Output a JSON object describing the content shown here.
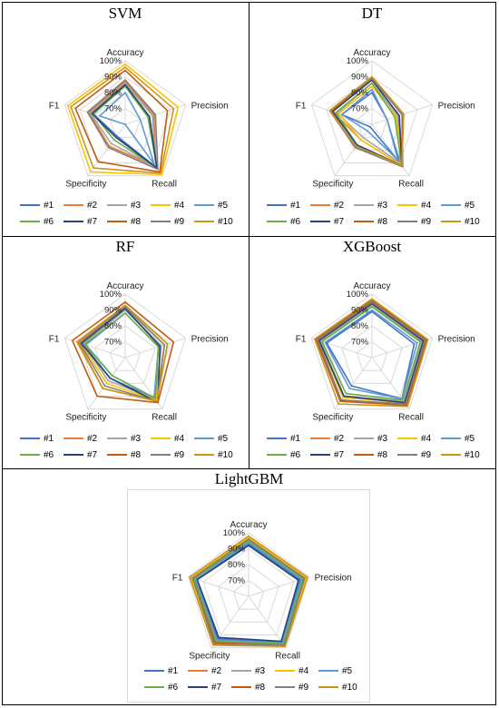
{
  "axes": [
    "Accuracy",
    "Precision",
    "Recall",
    "Specificity",
    "F1"
  ],
  "ticks": [
    "70%",
    "80%",
    "90%",
    "100%"
  ],
  "legend": [
    "#1",
    "#2",
    "#3",
    "#4",
    "#5",
    "#6",
    "#7",
    "#8",
    "#9",
    "#10"
  ],
  "colors": [
    "#4472c4",
    "#ed7d31",
    "#a5a5a5",
    "#ffc000",
    "#5b9bd5",
    "#70ad47",
    "#264478",
    "#c55a11",
    "#7f7f7f",
    "#c9961a"
  ],
  "chart_data": [
    {
      "type": "radar",
      "title": "SVM",
      "axes": [
        "Accuracy",
        "Precision",
        "Recall",
        "Specificity",
        "F1"
      ],
      "rmin": 60,
      "rmax": 100,
      "ticks": [
        70,
        80,
        90,
        100
      ],
      "series": [
        {
          "name": "#1",
          "values": [
            85,
            76,
            94,
            69,
            81
          ]
        },
        {
          "name": "#2",
          "values": [
            87,
            79,
            93,
            77,
            84
          ]
        },
        {
          "name": "#3",
          "values": [
            86,
            78,
            93,
            75,
            83
          ]
        },
        {
          "name": "#4",
          "values": [
            98,
            95,
            99,
            97,
            98
          ]
        },
        {
          "name": "#5",
          "values": [
            80,
            70,
            91,
            60,
            77
          ]
        },
        {
          "name": "#6",
          "values": [
            84,
            75,
            94,
            72,
            81
          ]
        },
        {
          "name": "#7",
          "values": [
            85,
            76,
            94,
            70,
            82
          ]
        },
        {
          "name": "#8",
          "values": [
            94,
            88,
            97,
            89,
            93
          ]
        },
        {
          "name": "#9",
          "values": [
            88,
            80,
            95,
            78,
            85
          ]
        },
        {
          "name": "#10",
          "values": [
            96,
            92,
            98,
            94,
            96
          ]
        }
      ]
    },
    {
      "type": "radar",
      "title": "DT",
      "axes": [
        "Accuracy",
        "Precision",
        "Recall",
        "Specificity",
        "F1"
      ],
      "rmin": 60,
      "rmax": 100,
      "ticks": [
        70,
        80,
        90,
        100
      ],
      "series": [
        {
          "name": "#1",
          "values": [
            80,
            70,
            90,
            62,
            80
          ]
        },
        {
          "name": "#2",
          "values": [
            88,
            78,
            92,
            72,
            86
          ]
        },
        {
          "name": "#3",
          "values": [
            86,
            77,
            90,
            70,
            83
          ]
        },
        {
          "name": "#4",
          "values": [
            84,
            76,
            92,
            72,
            82
          ]
        },
        {
          "name": "#5",
          "values": [
            82,
            70,
            88,
            65,
            80
          ]
        },
        {
          "name": "#6",
          "values": [
            86,
            75,
            92,
            76,
            84
          ]
        },
        {
          "name": "#7",
          "values": [
            88,
            78,
            92,
            76,
            86
          ]
        },
        {
          "name": "#8",
          "values": [
            89,
            80,
            92,
            78,
            87
          ]
        },
        {
          "name": "#9",
          "values": [
            89,
            80,
            93,
            78,
            88
          ]
        },
        {
          "name": "#10",
          "values": [
            90,
            81,
            92,
            77,
            88
          ]
        }
      ]
    },
    {
      "type": "radar",
      "title": "RF",
      "axes": [
        "Accuracy",
        "Precision",
        "Recall",
        "Specificity",
        "F1"
      ],
      "rmin": 60,
      "rmax": 100,
      "ticks": [
        70,
        80,
        90,
        100
      ],
      "series": [
        {
          "name": "#1",
          "values": [
            90,
            84,
            92,
            76,
            88
          ]
        },
        {
          "name": "#2",
          "values": [
            93,
            88,
            94,
            84,
            91
          ]
        },
        {
          "name": "#3",
          "values": [
            90,
            84,
            92,
            78,
            88
          ]
        },
        {
          "name": "#4",
          "values": [
            91,
            86,
            93,
            80,
            89
          ]
        },
        {
          "name": "#5",
          "values": [
            88,
            82,
            91,
            74,
            86
          ]
        },
        {
          "name": "#6",
          "values": [
            88,
            82,
            92,
            74,
            87
          ]
        },
        {
          "name": "#7",
          "values": [
            91,
            83,
            95,
            76,
            89
          ]
        },
        {
          "name": "#8",
          "values": [
            95,
            92,
            95,
            90,
            95
          ]
        },
        {
          "name": "#9",
          "values": [
            92,
            86,
            94,
            82,
            90
          ]
        },
        {
          "name": "#10",
          "values": [
            93,
            88,
            94,
            84,
            92
          ]
        }
      ]
    },
    {
      "type": "radar",
      "title": "XGBoost",
      "axes": [
        "Accuracy",
        "Precision",
        "Recall",
        "Specificity",
        "F1"
      ],
      "rmin": 60,
      "rmax": 100,
      "ticks": [
        70,
        80,
        90,
        100
      ],
      "series": [
        {
          "name": "#1",
          "values": [
            89,
            88,
            92,
            82,
            90
          ]
        },
        {
          "name": "#2",
          "values": [
            95,
            95,
            96,
            93,
            96
          ]
        },
        {
          "name": "#3",
          "values": [
            93,
            93,
            94,
            90,
            94
          ]
        },
        {
          "name": "#4",
          "values": [
            94,
            94,
            95,
            91,
            95
          ]
        },
        {
          "name": "#5",
          "values": [
            90,
            90,
            92,
            84,
            91
          ]
        },
        {
          "name": "#6",
          "values": [
            92,
            92,
            93,
            88,
            93
          ]
        },
        {
          "name": "#7",
          "values": [
            94,
            94,
            95,
            90,
            95
          ]
        },
        {
          "name": "#8",
          "values": [
            96,
            96,
            97,
            94,
            97
          ]
        },
        {
          "name": "#9",
          "values": [
            95,
            95,
            96,
            93,
            96
          ]
        },
        {
          "name": "#10",
          "values": [
            97,
            97,
            98,
            96,
            98
          ]
        }
      ]
    },
    {
      "type": "radar",
      "title": "LightGBM",
      "axes": [
        "Accuracy",
        "Precision",
        "Recall",
        "Specificity",
        "F1"
      ],
      "rmin": 60,
      "rmax": 100,
      "ticks": [
        70,
        80,
        90,
        100
      ],
      "series": [
        {
          "name": "#1",
          "values": [
            93,
            94,
            96,
            93,
            95
          ]
        },
        {
          "name": "#2",
          "values": [
            96,
            97,
            98,
            96,
            97
          ]
        },
        {
          "name": "#3",
          "values": [
            95,
            96,
            97,
            95,
            96
          ]
        },
        {
          "name": "#4",
          "values": [
            97,
            98,
            98,
            97,
            98
          ]
        },
        {
          "name": "#5",
          "values": [
            94,
            95,
            96,
            94,
            95
          ]
        },
        {
          "name": "#6",
          "values": [
            95,
            96,
            97,
            95,
            96
          ]
        },
        {
          "name": "#7",
          "values": [
            92,
            93,
            95,
            92,
            94
          ]
        },
        {
          "name": "#8",
          "values": [
            96,
            97,
            98,
            96,
            97
          ]
        },
        {
          "name": "#9",
          "values": [
            96,
            97,
            98,
            97,
            97
          ]
        },
        {
          "name": "#10",
          "values": [
            98,
            99,
            99,
            98,
            99
          ]
        }
      ]
    }
  ]
}
